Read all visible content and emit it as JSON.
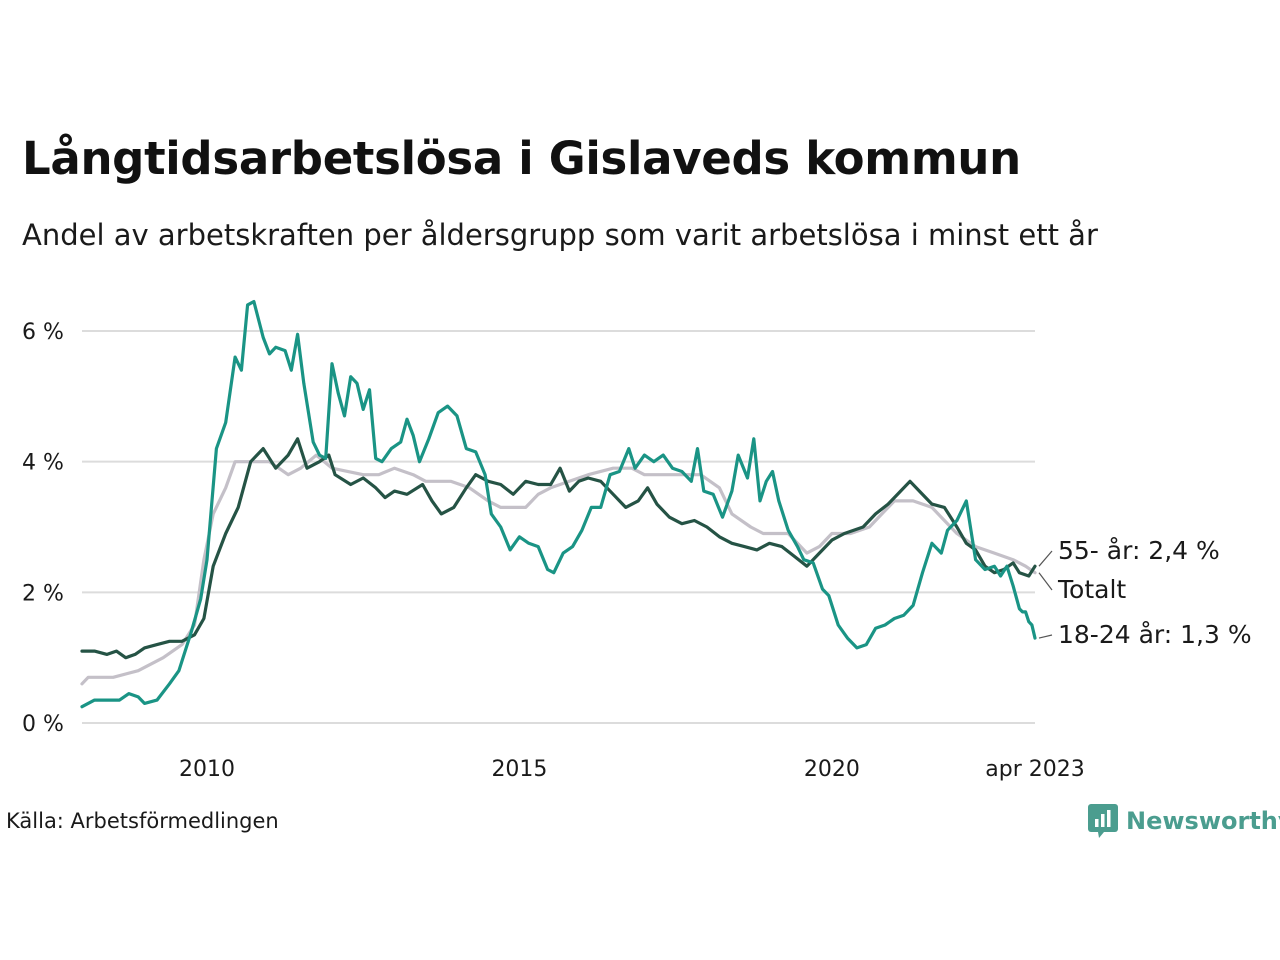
{
  "header": {
    "title": "Långtidsarbetslösa i Gislaveds kommun",
    "subtitle": "Andel av arbetskraften per åldersgrupp som varit arbetslösa i minst ett år"
  },
  "footer": {
    "source": "Källa: Arbetsförmedlingen",
    "brand": "Newsworthy",
    "brand_color": "#4b9d8f"
  },
  "chart_data": {
    "type": "line",
    "title": "Långtidsarbetslösa i Gislaveds kommun",
    "subtitle": "Andel av arbetskraften per åldersgrupp som varit arbetslösa i minst ett år",
    "xlabel": "",
    "ylabel": "",
    "xlim": [
      2008.0,
      2023.25
    ],
    "ylim": [
      0,
      6
    ],
    "x_ticks": [
      {
        "value": 2010,
        "label": "2010"
      },
      {
        "value": 2015,
        "label": "2015"
      },
      {
        "value": 2020,
        "label": "2020"
      },
      {
        "value": 2023.25,
        "label": "apr 2023"
      }
    ],
    "y_ticks": [
      {
        "value": 0,
        "label": "0 %"
      },
      {
        "value": 2,
        "label": "2 %"
      },
      {
        "value": 4,
        "label": "4 %"
      },
      {
        "value": 6,
        "label": "6 %"
      }
    ],
    "grid": true,
    "legend": "direct labels at line ends (right)",
    "series": [
      {
        "name": "Totalt",
        "label": "Totalt",
        "color": "#c4c0c8",
        "points": [
          [
            2008.0,
            0.6
          ],
          [
            2008.1,
            0.7
          ],
          [
            2008.5,
            0.7
          ],
          [
            2008.9,
            0.8
          ],
          [
            2009.3,
            1.0
          ],
          [
            2009.6,
            1.2
          ],
          [
            2009.8,
            1.5
          ],
          [
            2009.95,
            2.5
          ],
          [
            2010.1,
            3.2
          ],
          [
            2010.3,
            3.6
          ],
          [
            2010.45,
            4.0
          ],
          [
            2010.7,
            4.0
          ],
          [
            2011.0,
            4.0
          ],
          [
            2011.3,
            3.8
          ],
          [
            2011.5,
            3.9
          ],
          [
            2011.75,
            4.1
          ],
          [
            2012.0,
            3.9
          ],
          [
            2012.5,
            3.8
          ],
          [
            2012.75,
            3.8
          ],
          [
            2013.0,
            3.9
          ],
          [
            2013.3,
            3.8
          ],
          [
            2013.5,
            3.7
          ],
          [
            2013.9,
            3.7
          ],
          [
            2014.2,
            3.6
          ],
          [
            2014.5,
            3.4
          ],
          [
            2014.7,
            3.3
          ],
          [
            2015.1,
            3.3
          ],
          [
            2015.3,
            3.5
          ],
          [
            2015.5,
            3.6
          ],
          [
            2015.8,
            3.7
          ],
          [
            2016.1,
            3.8
          ],
          [
            2016.5,
            3.9
          ],
          [
            2016.8,
            3.9
          ],
          [
            2017.0,
            3.8
          ],
          [
            2017.5,
            3.8
          ],
          [
            2017.9,
            3.8
          ],
          [
            2018.2,
            3.6
          ],
          [
            2018.4,
            3.2
          ],
          [
            2018.7,
            3.0
          ],
          [
            2018.9,
            2.9
          ],
          [
            2019.3,
            2.9
          ],
          [
            2019.5,
            2.7
          ],
          [
            2019.6,
            2.6
          ],
          [
            2019.8,
            2.7
          ],
          [
            2020.0,
            2.9
          ],
          [
            2020.3,
            2.9
          ],
          [
            2020.6,
            3.0
          ],
          [
            2020.8,
            3.2
          ],
          [
            2021.0,
            3.4
          ],
          [
            2021.3,
            3.4
          ],
          [
            2021.6,
            3.3
          ],
          [
            2021.8,
            3.1
          ],
          [
            2022.0,
            2.9
          ],
          [
            2022.3,
            2.7
          ],
          [
            2022.6,
            2.6
          ],
          [
            2022.9,
            2.5
          ],
          [
            2023.1,
            2.4
          ],
          [
            2023.25,
            2.3
          ]
        ]
      },
      {
        "name": "55- år",
        "label": "55- år: 2,4 %",
        "color": "#255345",
        "points": [
          [
            2008.0,
            1.1
          ],
          [
            2008.2,
            1.1
          ],
          [
            2008.4,
            1.05
          ],
          [
            2008.55,
            1.1
          ],
          [
            2008.7,
            1.0
          ],
          [
            2008.85,
            1.05
          ],
          [
            2009.0,
            1.15
          ],
          [
            2009.2,
            1.2
          ],
          [
            2009.4,
            1.25
          ],
          [
            2009.6,
            1.25
          ],
          [
            2009.8,
            1.35
          ],
          [
            2009.95,
            1.6
          ],
          [
            2010.1,
            2.4
          ],
          [
            2010.3,
            2.9
          ],
          [
            2010.5,
            3.3
          ],
          [
            2010.7,
            4.0
          ],
          [
            2010.9,
            4.2
          ],
          [
            2011.1,
            3.9
          ],
          [
            2011.3,
            4.1
          ],
          [
            2011.45,
            4.35
          ],
          [
            2011.6,
            3.9
          ],
          [
            2011.8,
            4.0
          ],
          [
            2011.95,
            4.1
          ],
          [
            2012.05,
            3.8
          ],
          [
            2012.3,
            3.65
          ],
          [
            2012.5,
            3.75
          ],
          [
            2012.7,
            3.6
          ],
          [
            2012.85,
            3.45
          ],
          [
            2013.0,
            3.55
          ],
          [
            2013.2,
            3.5
          ],
          [
            2013.45,
            3.65
          ],
          [
            2013.6,
            3.4
          ],
          [
            2013.75,
            3.2
          ],
          [
            2013.95,
            3.3
          ],
          [
            2014.15,
            3.6
          ],
          [
            2014.3,
            3.8
          ],
          [
            2014.5,
            3.7
          ],
          [
            2014.7,
            3.65
          ],
          [
            2014.9,
            3.5
          ],
          [
            2015.1,
            3.7
          ],
          [
            2015.3,
            3.65
          ],
          [
            2015.5,
            3.65
          ],
          [
            2015.65,
            3.9
          ],
          [
            2015.8,
            3.55
          ],
          [
            2015.95,
            3.7
          ],
          [
            2016.1,
            3.75
          ],
          [
            2016.3,
            3.7
          ],
          [
            2016.5,
            3.5
          ],
          [
            2016.7,
            3.3
          ],
          [
            2016.9,
            3.4
          ],
          [
            2017.05,
            3.6
          ],
          [
            2017.2,
            3.35
          ],
          [
            2017.4,
            3.15
          ],
          [
            2017.6,
            3.05
          ],
          [
            2017.8,
            3.1
          ],
          [
            2018.0,
            3.0
          ],
          [
            2018.2,
            2.85
          ],
          [
            2018.4,
            2.75
          ],
          [
            2018.6,
            2.7
          ],
          [
            2018.8,
            2.65
          ],
          [
            2019.0,
            2.75
          ],
          [
            2019.2,
            2.7
          ],
          [
            2019.4,
            2.55
          ],
          [
            2019.6,
            2.4
          ],
          [
            2019.8,
            2.6
          ],
          [
            2020.0,
            2.8
          ],
          [
            2020.2,
            2.9
          ],
          [
            2020.5,
            3.0
          ],
          [
            2020.7,
            3.2
          ],
          [
            2020.9,
            3.35
          ],
          [
            2021.1,
            3.55
          ],
          [
            2021.25,
            3.7
          ],
          [
            2021.4,
            3.55
          ],
          [
            2021.6,
            3.35
          ],
          [
            2021.8,
            3.3
          ],
          [
            2022.0,
            3.0
          ],
          [
            2022.15,
            2.75
          ],
          [
            2022.3,
            2.65
          ],
          [
            2022.45,
            2.4
          ],
          [
            2022.6,
            2.3
          ],
          [
            2022.75,
            2.35
          ],
          [
            2022.9,
            2.45
          ],
          [
            2023.0,
            2.3
          ],
          [
            2023.15,
            2.25
          ],
          [
            2023.25,
            2.4
          ]
        ]
      },
      {
        "name": "18-24 år",
        "label": "18-24 år: 1,3 %",
        "color": "#1a9485",
        "points": [
          [
            2008.0,
            0.25
          ],
          [
            2008.2,
            0.35
          ],
          [
            2008.4,
            0.35
          ],
          [
            2008.6,
            0.35
          ],
          [
            2008.75,
            0.45
          ],
          [
            2008.9,
            0.4
          ],
          [
            2009.0,
            0.3
          ],
          [
            2009.2,
            0.35
          ],
          [
            2009.4,
            0.6
          ],
          [
            2009.55,
            0.8
          ],
          [
            2009.75,
            1.4
          ],
          [
            2009.9,
            1.9
          ],
          [
            2010.0,
            2.5
          ],
          [
            2010.15,
            4.2
          ],
          [
            2010.3,
            4.6
          ],
          [
            2010.45,
            5.6
          ],
          [
            2010.55,
            5.4
          ],
          [
            2010.65,
            6.4
          ],
          [
            2010.75,
            6.45
          ],
          [
            2010.9,
            5.9
          ],
          [
            2011.0,
            5.65
          ],
          [
            2011.1,
            5.75
          ],
          [
            2011.25,
            5.7
          ],
          [
            2011.35,
            5.4
          ],
          [
            2011.45,
            5.95
          ],
          [
            2011.55,
            5.2
          ],
          [
            2011.7,
            4.3
          ],
          [
            2011.8,
            4.1
          ],
          [
            2011.9,
            4.05
          ],
          [
            2012.0,
            5.5
          ],
          [
            2012.1,
            5.05
          ],
          [
            2012.2,
            4.7
          ],
          [
            2012.3,
            5.3
          ],
          [
            2012.4,
            5.2
          ],
          [
            2012.5,
            4.8
          ],
          [
            2012.6,
            5.1
          ],
          [
            2012.7,
            4.05
          ],
          [
            2012.8,
            4.0
          ],
          [
            2012.95,
            4.2
          ],
          [
            2013.1,
            4.3
          ],
          [
            2013.2,
            4.65
          ],
          [
            2013.3,
            4.4
          ],
          [
            2013.4,
            4.0
          ],
          [
            2013.55,
            4.35
          ],
          [
            2013.7,
            4.75
          ],
          [
            2013.85,
            4.85
          ],
          [
            2014.0,
            4.7
          ],
          [
            2014.15,
            4.2
          ],
          [
            2014.3,
            4.15
          ],
          [
            2014.45,
            3.8
          ],
          [
            2014.55,
            3.2
          ],
          [
            2014.7,
            3.0
          ],
          [
            2014.85,
            2.65
          ],
          [
            2015.0,
            2.85
          ],
          [
            2015.15,
            2.75
          ],
          [
            2015.3,
            2.7
          ],
          [
            2015.45,
            2.35
          ],
          [
            2015.55,
            2.3
          ],
          [
            2015.7,
            2.6
          ],
          [
            2015.85,
            2.7
          ],
          [
            2016.0,
            2.95
          ],
          [
            2016.15,
            3.3
          ],
          [
            2016.3,
            3.3
          ],
          [
            2016.45,
            3.8
          ],
          [
            2016.6,
            3.85
          ],
          [
            2016.75,
            4.2
          ],
          [
            2016.85,
            3.9
          ],
          [
            2017.0,
            4.1
          ],
          [
            2017.15,
            4.0
          ],
          [
            2017.3,
            4.1
          ],
          [
            2017.45,
            3.9
          ],
          [
            2017.6,
            3.85
          ],
          [
            2017.75,
            3.7
          ],
          [
            2017.85,
            4.2
          ],
          [
            2017.95,
            3.55
          ],
          [
            2018.1,
            3.5
          ],
          [
            2018.25,
            3.15
          ],
          [
            2018.4,
            3.55
          ],
          [
            2018.5,
            4.1
          ],
          [
            2018.65,
            3.75
          ],
          [
            2018.75,
            4.35
          ],
          [
            2018.85,
            3.4
          ],
          [
            2018.95,
            3.7
          ],
          [
            2019.05,
            3.85
          ],
          [
            2019.15,
            3.4
          ],
          [
            2019.3,
            2.95
          ],
          [
            2019.45,
            2.7
          ],
          [
            2019.55,
            2.5
          ],
          [
            2019.7,
            2.45
          ],
          [
            2019.85,
            2.05
          ],
          [
            2019.95,
            1.95
          ],
          [
            2020.1,
            1.5
          ],
          [
            2020.25,
            1.3
          ],
          [
            2020.4,
            1.15
          ],
          [
            2020.55,
            1.2
          ],
          [
            2020.7,
            1.45
          ],
          [
            2020.85,
            1.5
          ],
          [
            2021.0,
            1.6
          ],
          [
            2021.15,
            1.65
          ],
          [
            2021.3,
            1.8
          ],
          [
            2021.45,
            2.3
          ],
          [
            2021.6,
            2.75
          ],
          [
            2021.75,
            2.6
          ],
          [
            2021.85,
            2.95
          ],
          [
            2022.0,
            3.1
          ],
          [
            2022.15,
            3.4
          ],
          [
            2022.3,
            2.5
          ],
          [
            2022.45,
            2.35
          ],
          [
            2022.6,
            2.4
          ],
          [
            2022.7,
            2.25
          ],
          [
            2022.8,
            2.4
          ],
          [
            2022.9,
            2.1
          ],
          [
            2023.0,
            1.75
          ],
          [
            2023.05,
            1.7
          ],
          [
            2023.1,
            1.7
          ],
          [
            2023.15,
            1.55
          ],
          [
            2023.2,
            1.5
          ],
          [
            2023.25,
            1.3
          ]
        ]
      }
    ]
  }
}
